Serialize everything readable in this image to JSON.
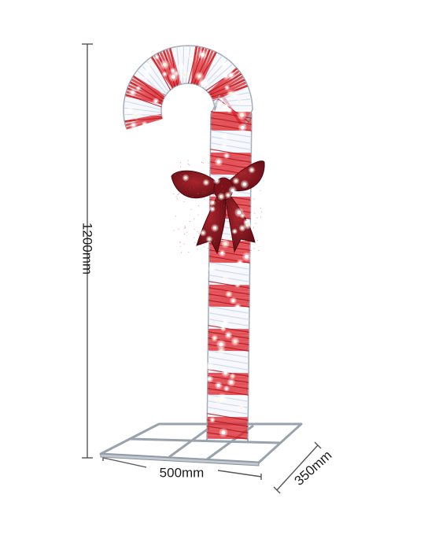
{
  "product": {
    "name": "candy cane light decoration",
    "icon": "candy-cane-icon",
    "colors": {
      "red": "#d8232a",
      "white": "#eef3fb",
      "bow": "#8b1620",
      "frame": "#9aa3ad"
    }
  },
  "dimensions": {
    "height": "1200mm",
    "width": "500mm",
    "depth": "350mm"
  }
}
